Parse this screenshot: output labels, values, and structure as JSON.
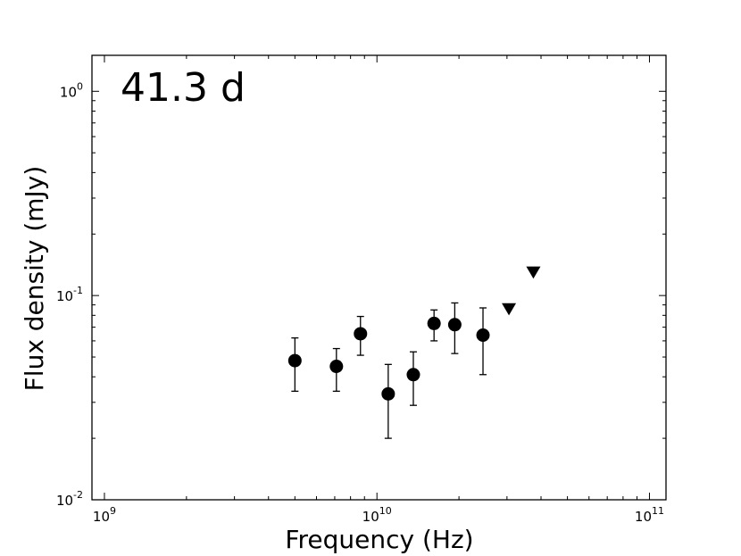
{
  "chart_data": {
    "type": "scatter",
    "annotation": "41.3 d",
    "xlabel": "Frequency (Hz)",
    "ylabel": "Flux density (mJy)",
    "xscale": "log",
    "yscale": "log",
    "xlim": [
      900000000.0,
      115000000000.0
    ],
    "ylim": [
      0.01,
      1.5
    ],
    "x_ticks": [
      {
        "value": 1000000000.0,
        "base": "10",
        "exp": "9"
      },
      {
        "value": 10000000000.0,
        "base": "10",
        "exp": "10"
      },
      {
        "value": 100000000000.0,
        "base": "10",
        "exp": "11"
      }
    ],
    "y_ticks": [
      {
        "value": 0.01,
        "base": "10",
        "exp": "-2"
      },
      {
        "value": 0.1,
        "base": "10",
        "exp": "-1"
      },
      {
        "value": 1.0,
        "base": "10",
        "exp": "0"
      }
    ],
    "grid": false,
    "legend": "none",
    "detections": [
      {
        "x": 5000000000.0,
        "y": 0.048,
        "ylo": 0.034,
        "yhi": 0.062
      },
      {
        "x": 7100000000.0,
        "y": 0.045,
        "ylo": 0.034,
        "yhi": 0.055
      },
      {
        "x": 8700000000.0,
        "y": 0.065,
        "ylo": 0.051,
        "yhi": 0.079
      },
      {
        "x": 11000000000.0,
        "y": 0.033,
        "ylo": 0.02,
        "yhi": 0.046
      },
      {
        "x": 13600000000.0,
        "y": 0.041,
        "ylo": 0.029,
        "yhi": 0.053
      },
      {
        "x": 16200000000.0,
        "y": 0.073,
        "ylo": 0.06,
        "yhi": 0.085
      },
      {
        "x": 19300000000.0,
        "y": 0.072,
        "ylo": 0.052,
        "yhi": 0.092
      },
      {
        "x": 24500000000.0,
        "y": 0.064,
        "ylo": 0.041,
        "yhi": 0.087
      }
    ],
    "upper_limits": [
      {
        "x": 30500000000.0,
        "y": 0.086
      },
      {
        "x": 37500000000.0,
        "y": 0.13
      }
    ],
    "marker_color": "#000000"
  }
}
